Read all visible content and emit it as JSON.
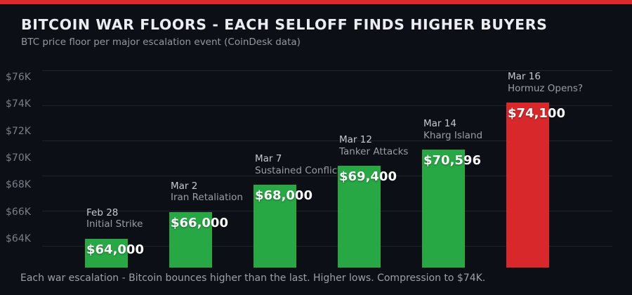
{
  "page": {
    "background_color": "#0d0f16",
    "accent_stripe_color": "#dc2b2e"
  },
  "header": {
    "title": "BITCOIN WAR FLOORS - EACH SELLOFF FINDS HIGHER BUYERS",
    "subtitle": "BTC price floor per major escalation event (CoinDesk data)"
  },
  "chart_data": {
    "type": "bar",
    "title": "BITCOIN WAR FLOORS - EACH SELLOFF FINDS HIGHER BUYERS",
    "subtitle": "BTC price floor per major escalation event (CoinDesk data)",
    "xlabel": "",
    "ylabel": "",
    "ylim": [
      61850,
      76520
    ],
    "grid": true,
    "legend": false,
    "bar_color_normal": "#27a844",
    "bar_color_highlight": "#d8282b",
    "yticks": [
      {
        "value": 64000,
        "label": "$64K"
      },
      {
        "value": 66000,
        "label": "$66K"
      },
      {
        "value": 68000,
        "label": "$68K"
      },
      {
        "value": 70000,
        "label": "$70K"
      },
      {
        "value": 72000,
        "label": "$72K"
      },
      {
        "value": 74000,
        "label": "$74K"
      },
      {
        "value": 76000,
        "label": "$76K"
      }
    ],
    "categories": [
      "Feb 28",
      "Mar 2",
      "Mar 7",
      "Mar 12",
      "Mar 14",
      "Mar 16"
    ],
    "bars": [
      {
        "date": "Feb 28",
        "event": "Initial Strike",
        "value": 64000,
        "label": "$64,000",
        "color": "#27a844"
      },
      {
        "date": "Mar 2",
        "event": "Iran Retaliation",
        "value": 66000,
        "label": "$66,000",
        "color": "#27a844"
      },
      {
        "date": "Mar 7",
        "event": "Sustained Conflict",
        "value": 68000,
        "label": "$68,000",
        "color": "#27a844"
      },
      {
        "date": "Mar 12",
        "event": "Tanker Attacks",
        "value": 69400,
        "label": "$69,400",
        "color": "#27a844"
      },
      {
        "date": "Mar 14",
        "event": "Kharg Island",
        "value": 70596,
        "label": "$70,596",
        "color": "#27a844"
      },
      {
        "date": "Mar 16",
        "event": "Hormuz Opens?",
        "value": 74100,
        "label": "$74,100",
        "color": "#d8282b"
      }
    ]
  },
  "footer": {
    "caption": "Each war escalation - Bitcoin bounces higher than the last. Higher lows. Compression to $74K."
  }
}
